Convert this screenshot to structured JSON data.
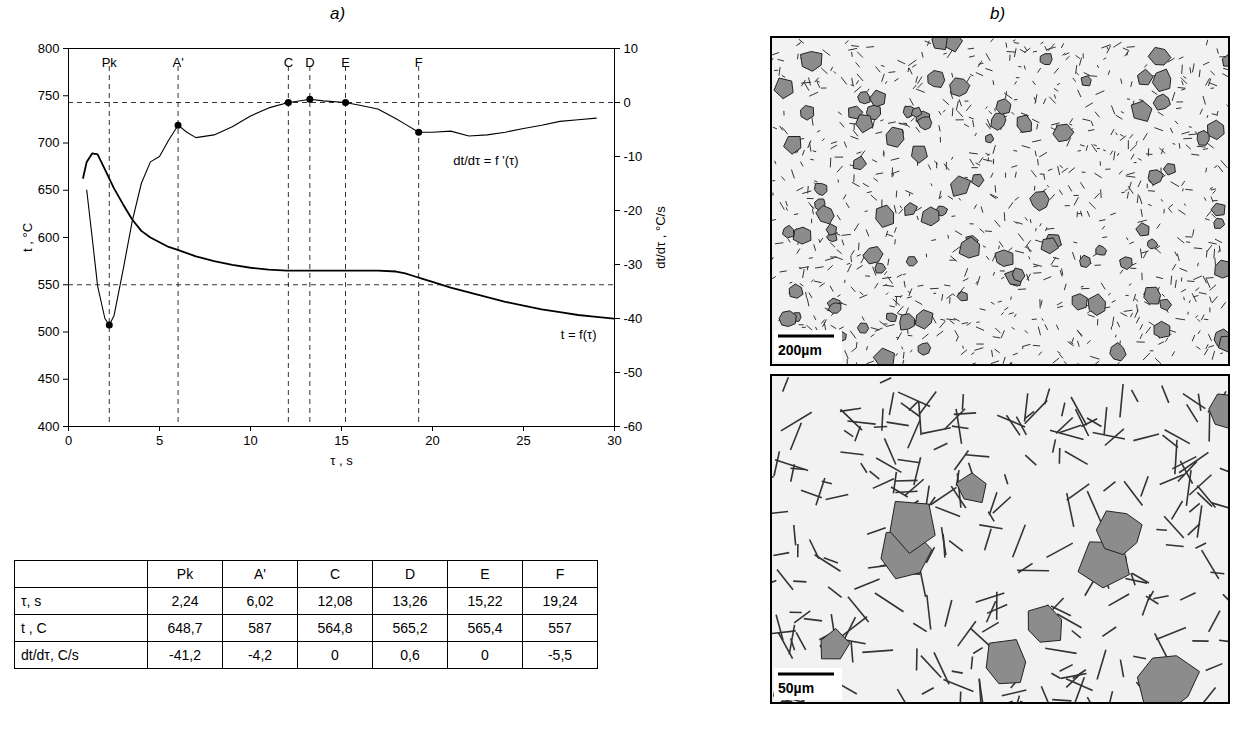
{
  "chart_data": {
    "type": "line",
    "title": "a)",
    "x_label": "τ , s",
    "y_label": "t , °C",
    "y2_label": "dt/dτ , °C/s",
    "xlim": [
      0,
      30
    ],
    "xticks": [
      0,
      5,
      10,
      15,
      20,
      25,
      30
    ],
    "ylim": [
      400,
      800
    ],
    "yticks": [
      400,
      450,
      500,
      550,
      600,
      650,
      700,
      750,
      800
    ],
    "y2lim": [
      -60,
      10
    ],
    "y2ticks": [
      -60,
      -50,
      -40,
      -30,
      -20,
      -10,
      0,
      10
    ],
    "grid": false,
    "reference_lines": {
      "y": [
        550
      ],
      "y2": [
        0
      ]
    },
    "series": [
      {
        "name": "t = f(τ)",
        "color": "#000000",
        "axis": "y",
        "x": [
          0.8,
          1,
          1.3,
          1.6,
          2,
          2.5,
          3,
          3.5,
          4,
          4.5,
          5,
          5.5,
          6,
          7,
          8,
          9,
          10,
          11,
          12,
          13,
          14,
          15,
          16,
          17,
          18,
          18.5,
          19,
          19.5,
          20,
          21,
          22,
          23,
          24,
          25,
          26,
          27,
          28,
          29,
          30
        ],
        "values": [
          663,
          680,
          689,
          688,
          672,
          652,
          635,
          619,
          607,
          600,
          595,
          590,
          587,
          580,
          575,
          571,
          568,
          566,
          565,
          565,
          565,
          565,
          565,
          565,
          564,
          562,
          559,
          556,
          553,
          547,
          542,
          537,
          532,
          528,
          524,
          521,
          518,
          516,
          514
        ]
      },
      {
        "name": "dt/dτ = f '(τ)",
        "color": "#000000",
        "axis": "y2",
        "x": [
          1,
          1.3,
          1.6,
          2,
          2.24,
          2.5,
          3,
          3.5,
          4,
          4.5,
          5,
          5.5,
          6.02,
          6.5,
          7,
          8,
          9,
          10,
          11,
          12.08,
          12.5,
          13.26,
          14,
          15.22,
          16,
          17,
          18,
          18.5,
          19.24,
          20,
          21,
          22,
          23,
          24,
          25,
          26,
          27,
          28,
          29
        ],
        "values": [
          -16.2,
          -25,
          -34,
          -40,
          -41.2,
          -39.5,
          -31,
          -22,
          -15,
          -11,
          -10,
          -7,
          -4.2,
          -5.5,
          -6.5,
          -6,
          -4.5,
          -2.5,
          -1,
          0,
          0.2,
          0.6,
          0.3,
          0,
          -0.5,
          -1.2,
          -3,
          -4,
          -5.5,
          -5.5,
          -5.3,
          -6.2,
          -6,
          -5.5,
          -4.8,
          -4.2,
          -3.5,
          -3.2,
          -2.9
        ]
      }
    ]
  },
  "table": {
    "header": [
      null,
      "Pk",
      "A'",
      "C",
      "D",
      "E",
      "F"
    ],
    "rows": [
      [
        "τ, s",
        "2,24",
        "6,02",
        "12,08",
        "13,26",
        "15,22",
        "19,24"
      ],
      [
        "t , C",
        "648,7",
        "587",
        "564,8",
        "565,2",
        "565,4",
        "557"
      ],
      [
        "dt/dτ, C/s",
        "-41,2",
        "-4,2",
        "0",
        "0,6",
        "0",
        "-5,5"
      ]
    ]
  },
  "micrographs": {
    "title": "b)",
    "panels": [
      {
        "scale_bar": "200µm"
      },
      {
        "scale_bar": "50µm"
      }
    ]
  }
}
